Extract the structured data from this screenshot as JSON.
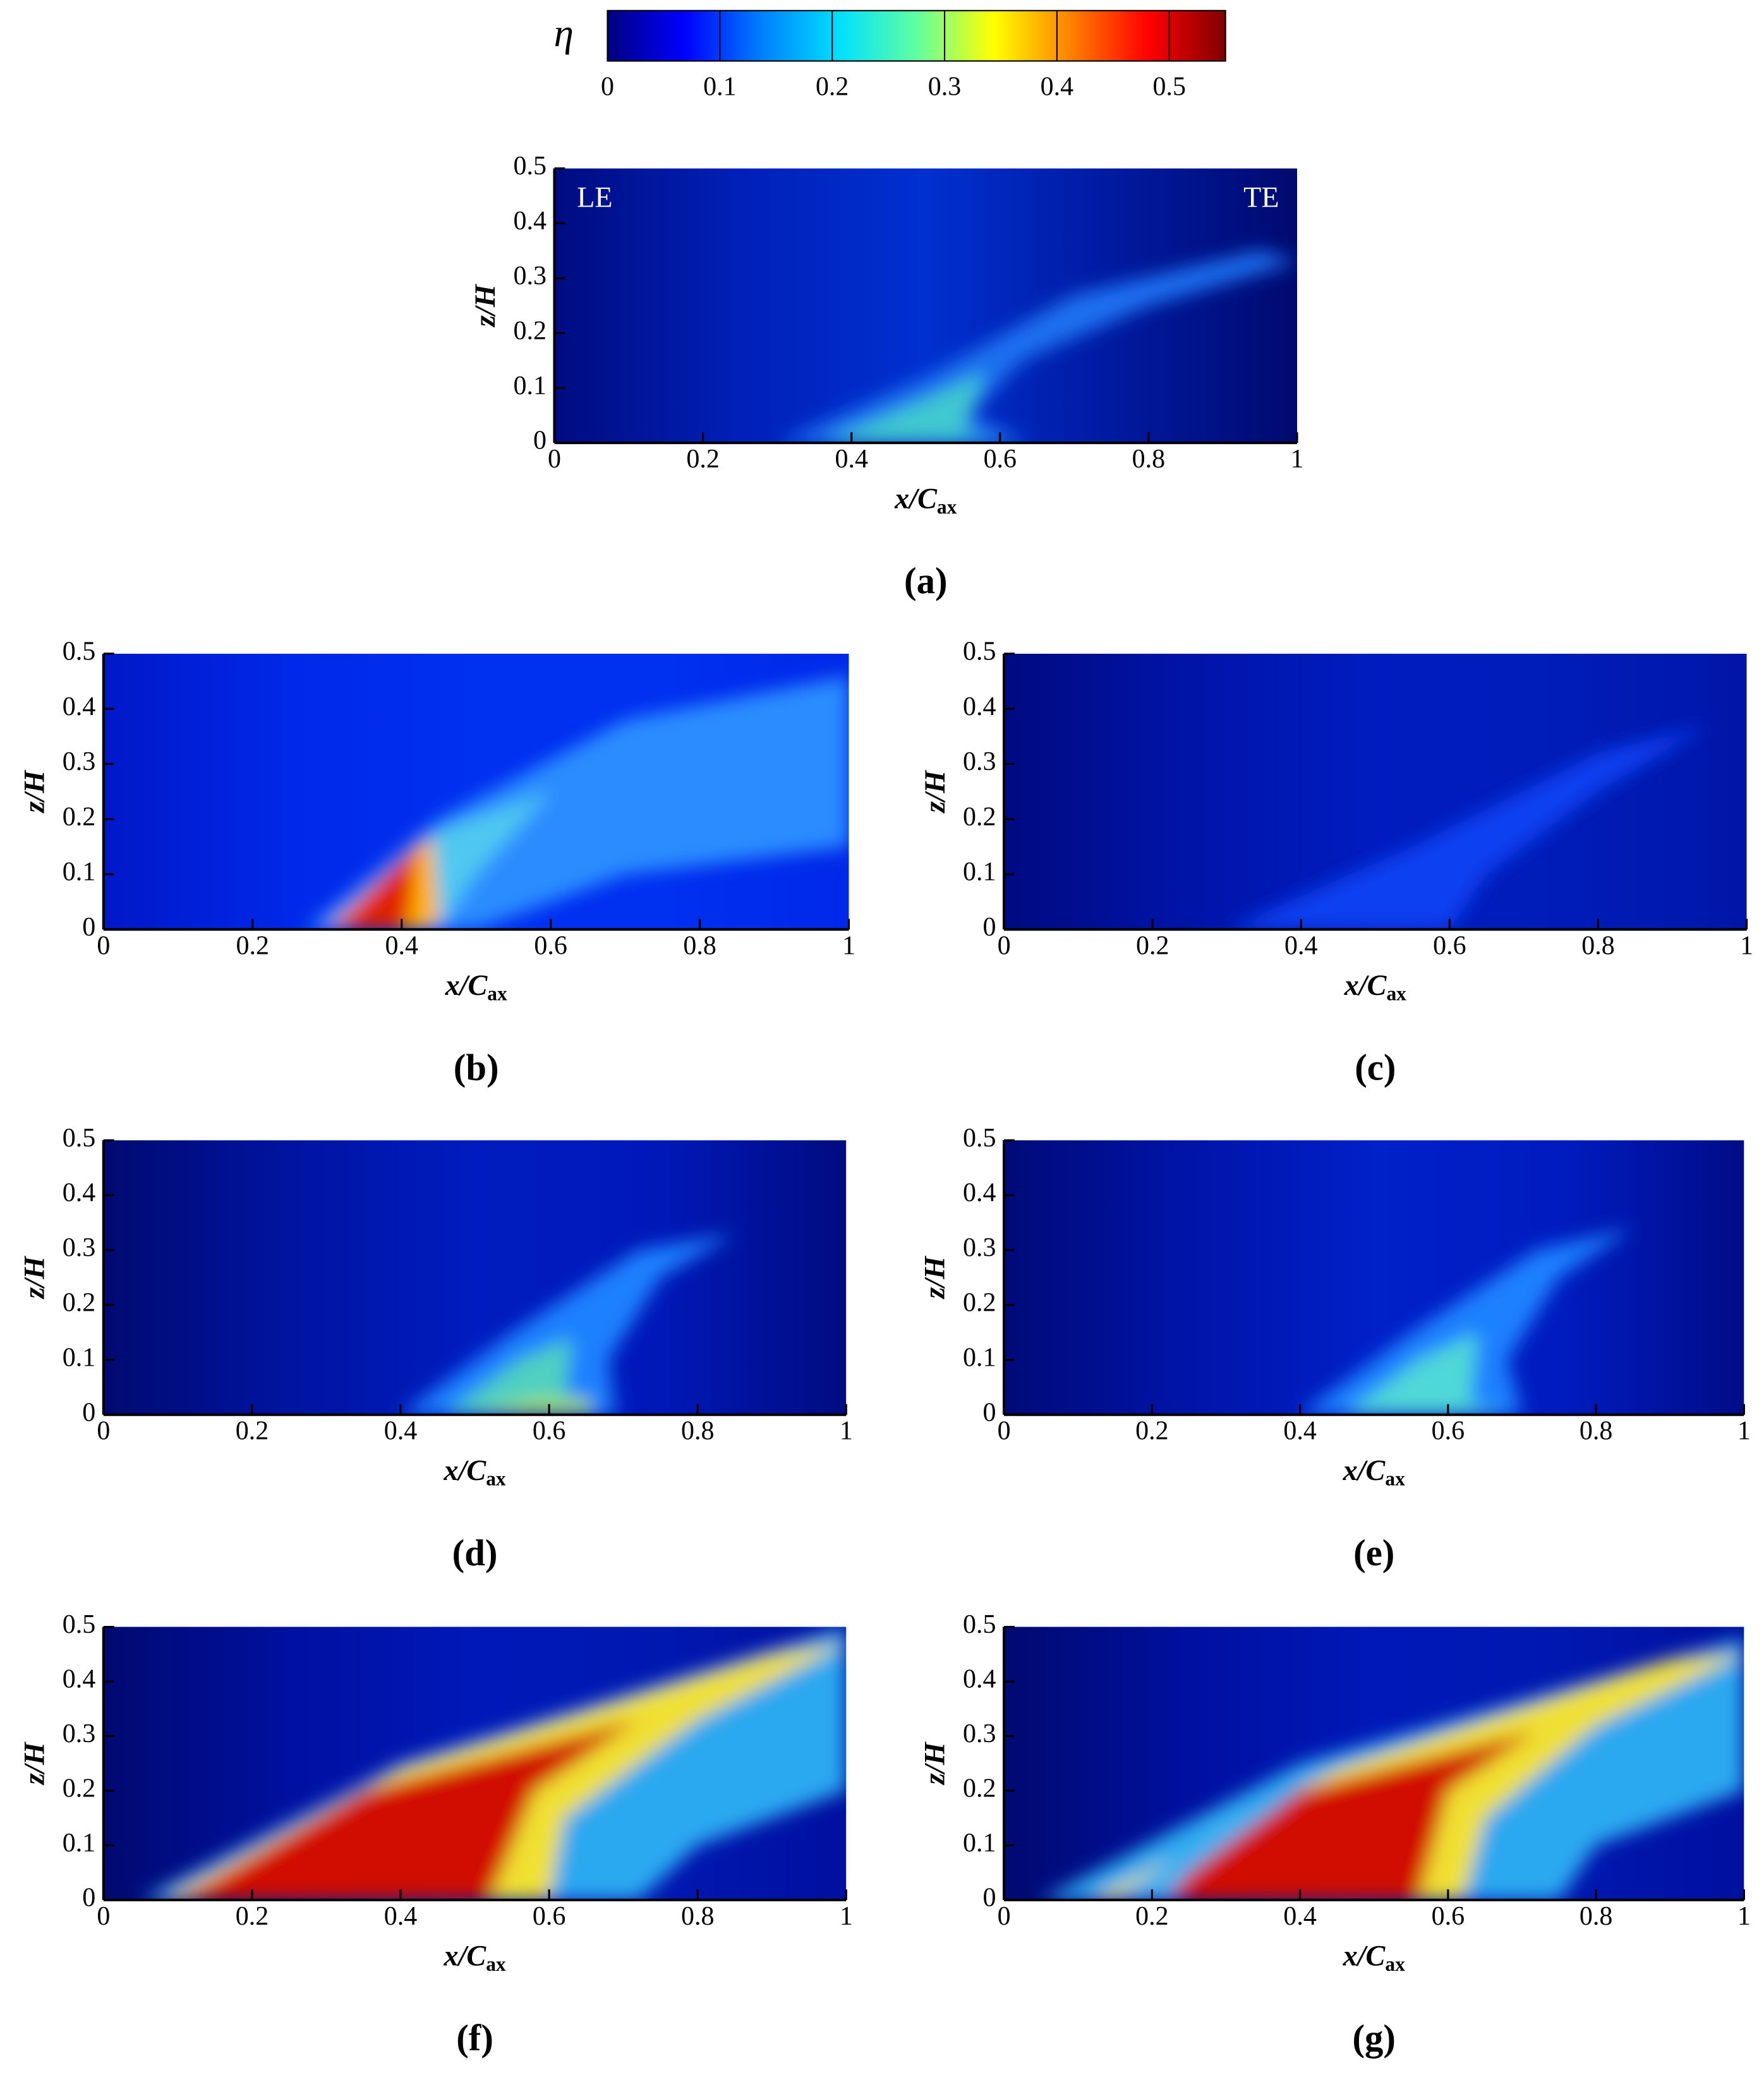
{
  "colorbar": {
    "label": "η",
    "lim": [
      0,
      0.55
    ],
    "ticks": [
      0,
      0.1,
      0.2,
      0.3,
      0.4,
      0.5
    ],
    "colors": [
      "#00007f",
      "#0000ff",
      "#0080ff",
      "#00e0ff",
      "#60ffa0",
      "#ffff00",
      "#ff8000",
      "#ff0000",
      "#7f0000"
    ]
  },
  "chart_data": [
    {
      "type": "contour",
      "panel": "(a)",
      "annotations": [
        "LE",
        "TE"
      ],
      "xlabel": "x/C",
      "xlabel_sub": "ax",
      "ylabel": "z/H",
      "xlim": [
        0,
        1
      ],
      "ylim": [
        0,
        0.5
      ],
      "xticks": [
        0,
        0.2,
        0.4,
        0.6,
        0.8,
        1
      ],
      "yticks": [
        0,
        0.1,
        0.2,
        0.3,
        0.4,
        0.5
      ]
    },
    {
      "type": "contour",
      "panel": "(b)",
      "xlabel": "x/C",
      "xlabel_sub": "ax",
      "ylabel": "z/H",
      "xlim": [
        0,
        1
      ],
      "ylim": [
        0,
        0.5
      ],
      "xticks": [
        0,
        0.2,
        0.4,
        0.6,
        0.8,
        1
      ],
      "yticks": [
        0,
        0.1,
        0.2,
        0.3,
        0.4,
        0.5
      ]
    },
    {
      "type": "contour",
      "panel": "(c)",
      "xlabel": "x/C",
      "xlabel_sub": "ax",
      "ylabel": "z/H",
      "xlim": [
        0,
        1
      ],
      "ylim": [
        0,
        0.5
      ],
      "xticks": [
        0,
        0.2,
        0.4,
        0.6,
        0.8,
        1
      ],
      "yticks": [
        0,
        0.1,
        0.2,
        0.3,
        0.4,
        0.5
      ]
    },
    {
      "type": "contour",
      "panel": "(d)",
      "xlabel": "x/C",
      "xlabel_sub": "ax",
      "ylabel": "z/H",
      "xlim": [
        0,
        1
      ],
      "ylim": [
        0,
        0.5
      ],
      "xticks": [
        0,
        0.2,
        0.4,
        0.6,
        0.8,
        1
      ],
      "yticks": [
        0,
        0.1,
        0.2,
        0.3,
        0.4,
        0.5
      ]
    },
    {
      "type": "contour",
      "panel": "(e)",
      "xlabel": "x/C",
      "xlabel_sub": "ax",
      "ylabel": "z/H",
      "xlim": [
        0,
        1
      ],
      "ylim": [
        0,
        0.5
      ],
      "xticks": [
        0,
        0.2,
        0.4,
        0.6,
        0.8,
        1
      ],
      "yticks": [
        0,
        0.1,
        0.2,
        0.3,
        0.4,
        0.5
      ]
    },
    {
      "type": "contour",
      "panel": "(f)",
      "xlabel": "x/C",
      "xlabel_sub": "ax",
      "ylabel": "z/H",
      "xlim": [
        0,
        1
      ],
      "ylim": [
        0,
        0.5
      ],
      "xticks": [
        0,
        0.2,
        0.4,
        0.6,
        0.8,
        1
      ],
      "yticks": [
        0,
        0.1,
        0.2,
        0.3,
        0.4,
        0.5
      ]
    },
    {
      "type": "contour",
      "panel": "(g)",
      "xlabel": "x/C",
      "xlabel_sub": "ax",
      "ylabel": "z/H",
      "xlim": [
        0,
        1
      ],
      "ylim": [
        0,
        0.5
      ],
      "xticks": [
        0,
        0.2,
        0.4,
        0.6,
        0.8,
        1
      ],
      "yticks": [
        0,
        0.1,
        0.2,
        0.3,
        0.4,
        0.5
      ]
    }
  ]
}
